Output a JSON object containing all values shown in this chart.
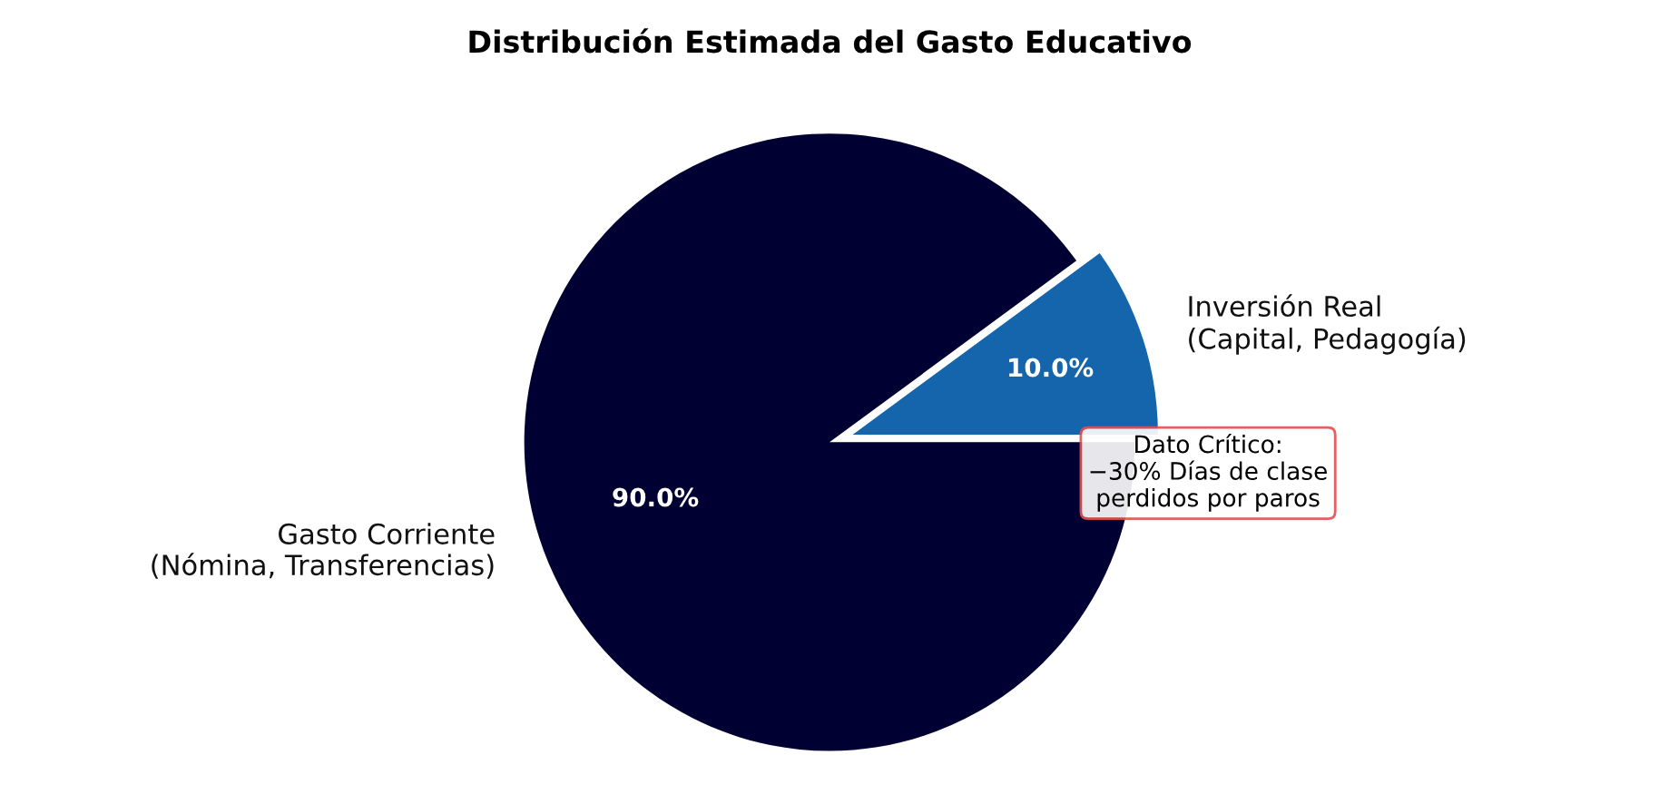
{
  "chart_data": {
    "type": "pie",
    "title": "Distribución Estimada del Gasto Educativo",
    "categories": [
      "Gasto Corriente\n(Nómina, Transferencias)",
      "Inversión Real\n(Capital, Pedagogía)"
    ],
    "values": [
      90.0,
      10.0
    ],
    "colors": [
      "#000033",
      "#1565ad"
    ],
    "value_labels": [
      "90.0%",
      "10.0%"
    ],
    "annotations": [
      "Dato Crítico:\n−30% Días de clase\nperdidos por paros"
    ],
    "legend": false
  }
}
